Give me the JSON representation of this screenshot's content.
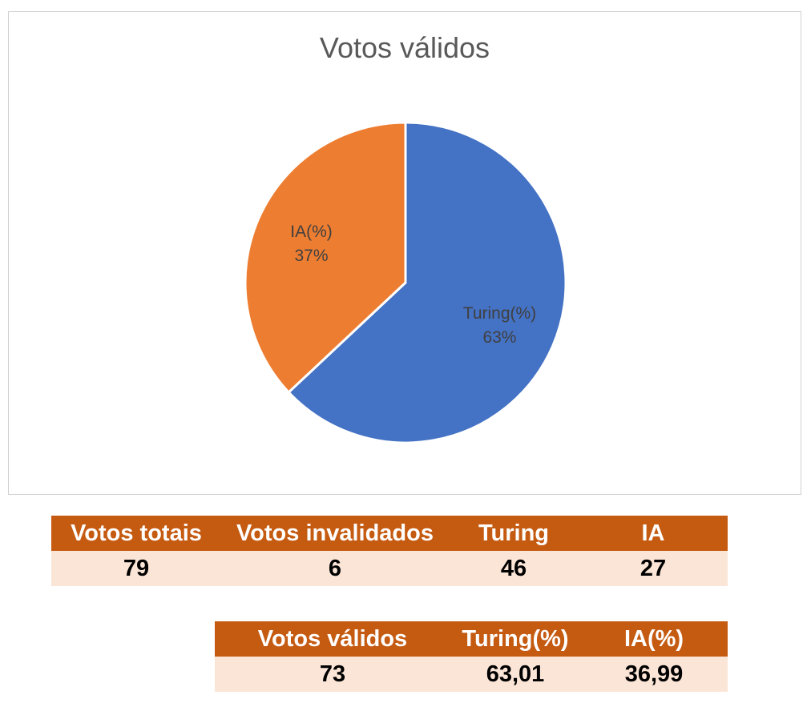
{
  "chart_data": {
    "type": "pie",
    "title": "Votos válidos",
    "slices": [
      {
        "label": "Turing(%)",
        "value": 63,
        "value_label": "63%",
        "color": "#4472c4"
      },
      {
        "label": "IA(%)",
        "value": 37,
        "value_label": "37%",
        "color": "#ed7d31"
      }
    ]
  },
  "table_totals": {
    "headers": [
      "Votos totais",
      "Votos invalidados",
      "Turing",
      "IA"
    ],
    "values": [
      "79",
      "6",
      "46",
      "27"
    ]
  },
  "table_valid": {
    "headers": [
      "Votos válidos",
      "Turing(%)",
      "IA(%)"
    ],
    "values": [
      "73",
      "63,01",
      "36,99"
    ]
  },
  "colors": {
    "header_bg": "#c55a11",
    "row_bg": "#fbe5d6"
  }
}
